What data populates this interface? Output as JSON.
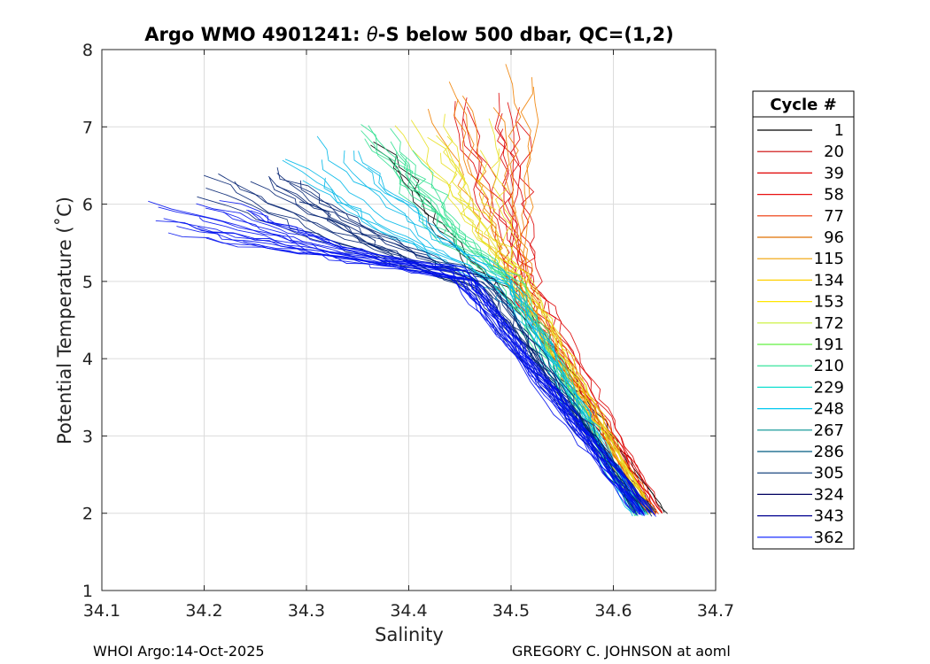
{
  "chart_data": {
    "type": "line",
    "title_prefix": "Argo WMO 4901241: ",
    "title_symbol": "θ",
    "title_suffix": "-S below 500 dbar,  QC=(1,2)",
    "xlabel": "Salinity",
    "ylabel": "Potential Temperature (˚C)",
    "xlim": [
      34.1,
      34.7
    ],
    "ylim": [
      1,
      8
    ],
    "xticks": [
      "34.1",
      "34.2",
      "34.3",
      "34.4",
      "34.5",
      "34.6",
      "34.7"
    ],
    "yticks": [
      "1",
      "2",
      "3",
      "4",
      "5",
      "6",
      "7",
      "8"
    ],
    "grid": true,
    "legend": {
      "title": "Cycle #",
      "placement": "right",
      "entries": [
        {
          "label": "1",
          "color": "#000000"
        },
        {
          "label": "20",
          "color": "#cc0000"
        },
        {
          "label": "39",
          "color": "#e00000"
        },
        {
          "label": "58",
          "color": "#e81010"
        },
        {
          "label": "77",
          "color": "#ee3000"
        },
        {
          "label": "96",
          "color": "#e07000"
        },
        {
          "label": "115",
          "color": "#f0a000"
        },
        {
          "label": "134",
          "color": "#ffd000"
        },
        {
          "label": "153",
          "color": "#ffe600"
        },
        {
          "label": "172",
          "color": "#c8f030"
        },
        {
          "label": "191",
          "color": "#60f040"
        },
        {
          "label": "210",
          "color": "#20e090"
        },
        {
          "label": "229",
          "color": "#10e0d0"
        },
        {
          "label": "248",
          "color": "#00c8f0"
        },
        {
          "label": "267",
          "color": "#009090"
        },
        {
          "label": "286",
          "color": "#005a80"
        },
        {
          "label": "305",
          "color": "#003070"
        },
        {
          "label": "324",
          "color": "#000060"
        },
        {
          "label": "343",
          "color": "#000090"
        },
        {
          "label": "362",
          "color": "#0018ff"
        }
      ]
    },
    "series_groups": [
      {
        "name_ref": "1",
        "color": "#000000",
        "deep": [
          34.648,
          2.0
        ],
        "mid": [
          34.5,
          4.8
        ],
        "top": [
          34.36,
          6.5
        ],
        "count": 3
      },
      {
        "name_ref": "20-58",
        "color": "#dd0000",
        "deep": [
          34.64,
          2.0
        ],
        "mid": [
          34.515,
          4.9
        ],
        "top": [
          34.49,
          7.2
        ],
        "count": 10
      },
      {
        "name_ref": "77-115",
        "color": "#f08000",
        "deep": [
          34.635,
          2.0
        ],
        "mid": [
          34.51,
          5.0
        ],
        "top": [
          34.47,
          7.5
        ],
        "count": 8
      },
      {
        "name_ref": "134-172",
        "color": "#e8e020",
        "deep": [
          34.63,
          2.0
        ],
        "mid": [
          34.505,
          5.0
        ],
        "top": [
          34.44,
          6.9
        ],
        "count": 10
      },
      {
        "name_ref": "191-229",
        "color": "#30e090",
        "deep": [
          34.625,
          2.0
        ],
        "mid": [
          34.5,
          5.0
        ],
        "top": [
          34.39,
          6.8
        ],
        "count": 10
      },
      {
        "name_ref": "248-267",
        "color": "#00b8e8",
        "deep": [
          34.625,
          2.0
        ],
        "mid": [
          34.49,
          5.0
        ],
        "top": [
          34.32,
          6.6
        ],
        "count": 10
      },
      {
        "name_ref": "286-324",
        "color": "#002070",
        "deep": [
          34.63,
          2.0
        ],
        "mid": [
          34.47,
          5.0
        ],
        "top": [
          34.25,
          6.2
        ],
        "count": 14
      },
      {
        "name_ref": "343-362",
        "color": "#0010ee",
        "deep": [
          34.63,
          2.0
        ],
        "mid": [
          34.45,
          5.1
        ],
        "top": [
          34.2,
          5.8
        ],
        "count": 18
      }
    ]
  },
  "footer": {
    "left": "WHOI Argo:14-Oct-2025",
    "right": "GREGORY C. JOHNSON at aoml"
  }
}
